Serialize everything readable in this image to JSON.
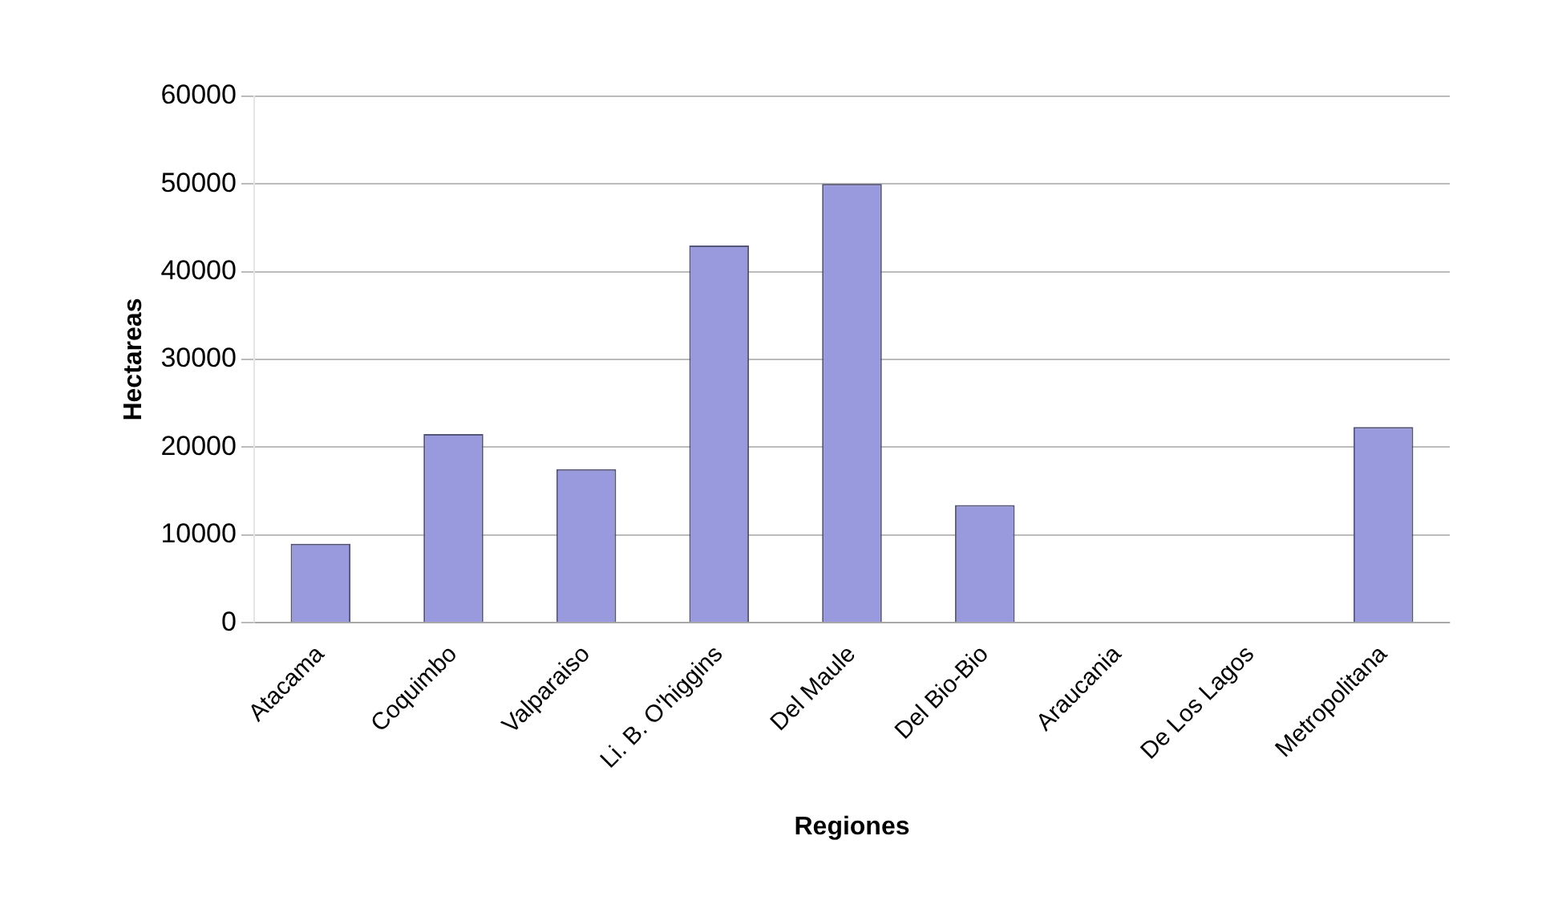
{
  "chart_data": {
    "type": "bar",
    "xlabel": "Regiones",
    "ylabel": "Hectareas",
    "categories": [
      "Atacama",
      "Coquimbo",
      "Valparaiso",
      "Li. B. O'higgins",
      "Del Maule",
      "Del Bio-Bio",
      "Araucania",
      "De Los Lagos",
      "Metropolitana"
    ],
    "values": [
      9000,
      21500,
      17500,
      43000,
      50000,
      13400,
      0,
      0,
      22300
    ],
    "color": "#9999dd",
    "ylim": [
      0,
      60000
    ],
    "yticks": [
      0,
      10000,
      20000,
      30000,
      40000,
      50000,
      60000
    ],
    "grid": "y",
    "legend": false
  }
}
